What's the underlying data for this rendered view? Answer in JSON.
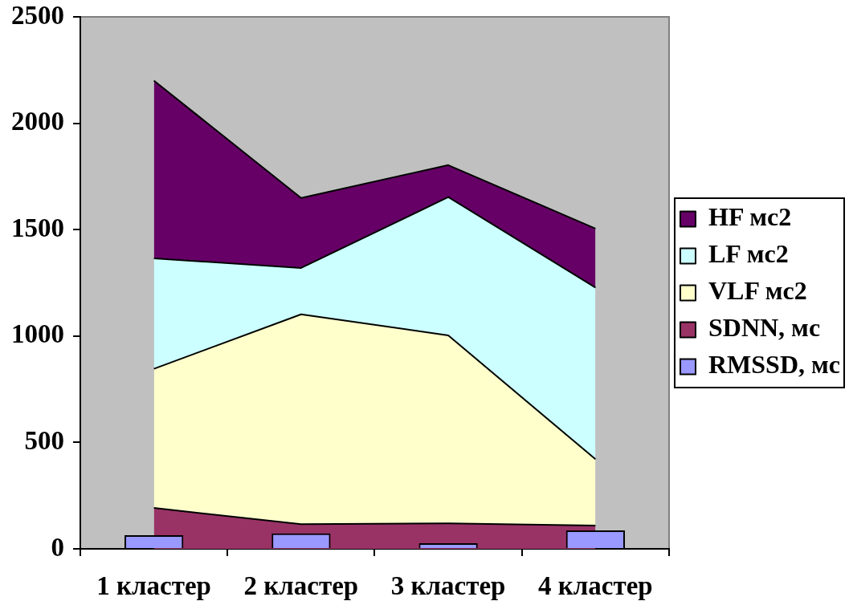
{
  "chart_data": {
    "type": "area",
    "categories": [
      "1 кластер",
      "2 кластер",
      "3 кластер",
      "4 кластер"
    ],
    "stacked": true,
    "series": [
      {
        "name": "RMSSD, мс",
        "type": "bar",
        "color": "#9999ff",
        "values": [
          64,
          73,
          26,
          87
        ]
      },
      {
        "name": "SDNN, мс",
        "color": "#993366",
        "values": [
          192,
          116,
          120,
          109
        ]
      },
      {
        "name": "VLF мс2",
        "color": "#ffffcc",
        "values": [
          654,
          986,
          883,
          312
        ]
      },
      {
        "name": "LF мс2",
        "color": "#ccffff",
        "values": [
          519,
          218,
          650,
          807
        ]
      },
      {
        "name": "HF мс2",
        "color": "#660066",
        "values": [
          835,
          329,
          150,
          277
        ]
      }
    ],
    "ylim": [
      0,
      2500
    ],
    "yticks": [
      0,
      500,
      1000,
      1500,
      2000,
      2500
    ],
    "legend": "right"
  }
}
